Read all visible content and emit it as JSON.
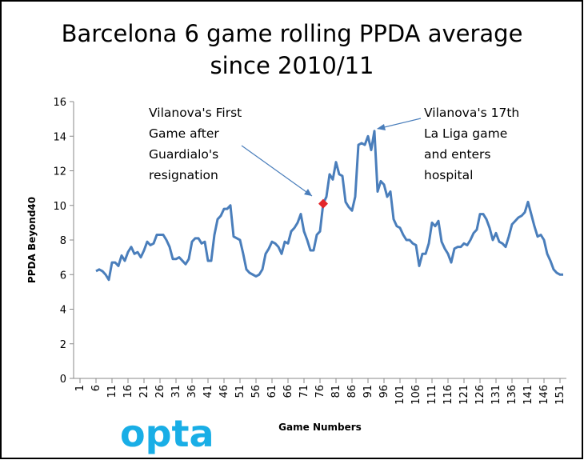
{
  "chart_data": {
    "type": "line",
    "title": [
      "Barcelona 6 game rolling PPDA average",
      "since 2010/11"
    ],
    "x_label": "Game Numbers",
    "y_label": "PPDA Beyond40",
    "xlim": [
      -1,
      153
    ],
    "ylim": [
      0,
      16
    ],
    "xticks": [
      1,
      6,
      11,
      16,
      21,
      26,
      31,
      36,
      41,
      46,
      51,
      56,
      61,
      66,
      71,
      76,
      81,
      86,
      91,
      96,
      101,
      106,
      111,
      116,
      121,
      126,
      131,
      136,
      141,
      146,
      151
    ],
    "yticks": [
      0,
      2,
      4,
      6,
      8,
      10,
      12,
      14,
      16
    ],
    "series": [
      {
        "color": "#4a7ebb",
        "x": [
          6,
          7,
          8,
          9,
          10,
          11,
          12,
          13,
          14,
          15,
          16,
          17,
          18,
          19,
          20,
          21,
          22,
          23,
          24,
          25,
          26,
          27,
          28,
          29,
          30,
          31,
          32,
          33,
          34,
          35,
          36,
          37,
          38,
          39,
          40,
          41,
          42,
          43,
          44,
          45,
          46,
          47,
          48,
          49,
          50,
          51,
          52,
          53,
          54,
          55,
          56,
          57,
          58,
          59,
          60,
          61,
          62,
          63,
          64,
          65,
          66,
          67,
          68,
          69,
          70,
          71,
          72,
          73,
          74,
          75,
          76,
          77,
          78,
          79,
          80,
          81,
          82,
          83,
          84,
          85,
          86,
          87,
          88,
          89,
          90,
          91,
          92,
          93,
          94,
          95,
          96,
          97,
          98,
          99,
          100,
          101,
          102,
          103,
          104,
          105,
          106,
          107,
          108,
          109,
          110,
          111,
          112,
          113,
          114,
          115,
          116,
          117,
          118,
          119,
          120,
          121,
          122,
          123,
          124,
          125,
          126,
          127,
          128,
          129,
          130,
          131,
          132,
          133,
          134,
          135,
          136,
          137,
          138,
          139,
          140,
          141,
          142,
          143,
          144,
          145,
          146,
          147,
          148,
          149,
          150,
          151,
          152
        ],
        "values": [
          6.2,
          6.3,
          6.2,
          6.0,
          5.7,
          6.7,
          6.7,
          6.5,
          7.1,
          6.8,
          7.3,
          7.6,
          7.2,
          7.3,
          7.0,
          7.4,
          7.9,
          7.7,
          7.8,
          8.3,
          8.3,
          8.3,
          8.0,
          7.6,
          6.9,
          6.9,
          7.0,
          6.8,
          6.6,
          6.9,
          7.9,
          8.1,
          8.1,
          7.8,
          7.9,
          6.8,
          6.8,
          8.3,
          9.2,
          9.4,
          9.8,
          9.8,
          10.0,
          8.2,
          8.1,
          8.0,
          7.2,
          6.3,
          6.1,
          6.0,
          5.9,
          6.0,
          6.3,
          7.2,
          7.5,
          7.9,
          7.8,
          7.6,
          7.2,
          7.9,
          7.8,
          8.5,
          8.7,
          9.0,
          9.5,
          8.5,
          8.0,
          7.4,
          7.4,
          8.3,
          8.5,
          10.1,
          10.5,
          11.8,
          11.5,
          12.5,
          11.8,
          11.7,
          10.2,
          9.9,
          9.7,
          10.5,
          13.5,
          13.6,
          13.5,
          14.0,
          13.2,
          14.3,
          10.8,
          11.4,
          11.2,
          10.5,
          10.8,
          9.2,
          8.8,
          8.7,
          8.3,
          8.0,
          8.0,
          7.8,
          7.7,
          6.5,
          7.2,
          7.2,
          7.8,
          9.0,
          8.8,
          9.1,
          7.9,
          7.5,
          7.2,
          6.7,
          7.5,
          7.6,
          7.6,
          7.8,
          7.7,
          8.0,
          8.4,
          8.6,
          9.5,
          9.5,
          9.2,
          8.7,
          8.0,
          8.4,
          7.9,
          7.8,
          7.6,
          8.2,
          8.9,
          9.1,
          9.3,
          9.4,
          9.6,
          10.2,
          9.5,
          8.8,
          8.2,
          8.3,
          8.0,
          7.2,
          6.8,
          6.3,
          6.1,
          6.0,
          6.0
        ]
      }
    ],
    "marker": {
      "x": 77,
      "value": 10.1,
      "color": "#e3262a"
    },
    "annotations": [
      [
        "Vilanova's First",
        "Game after",
        "Guardialo's",
        "resignation"
      ],
      [
        "Vilanova's 17th",
        "La Liga game",
        "and enters",
        "hospital"
      ]
    ],
    "logo": "opta"
  }
}
